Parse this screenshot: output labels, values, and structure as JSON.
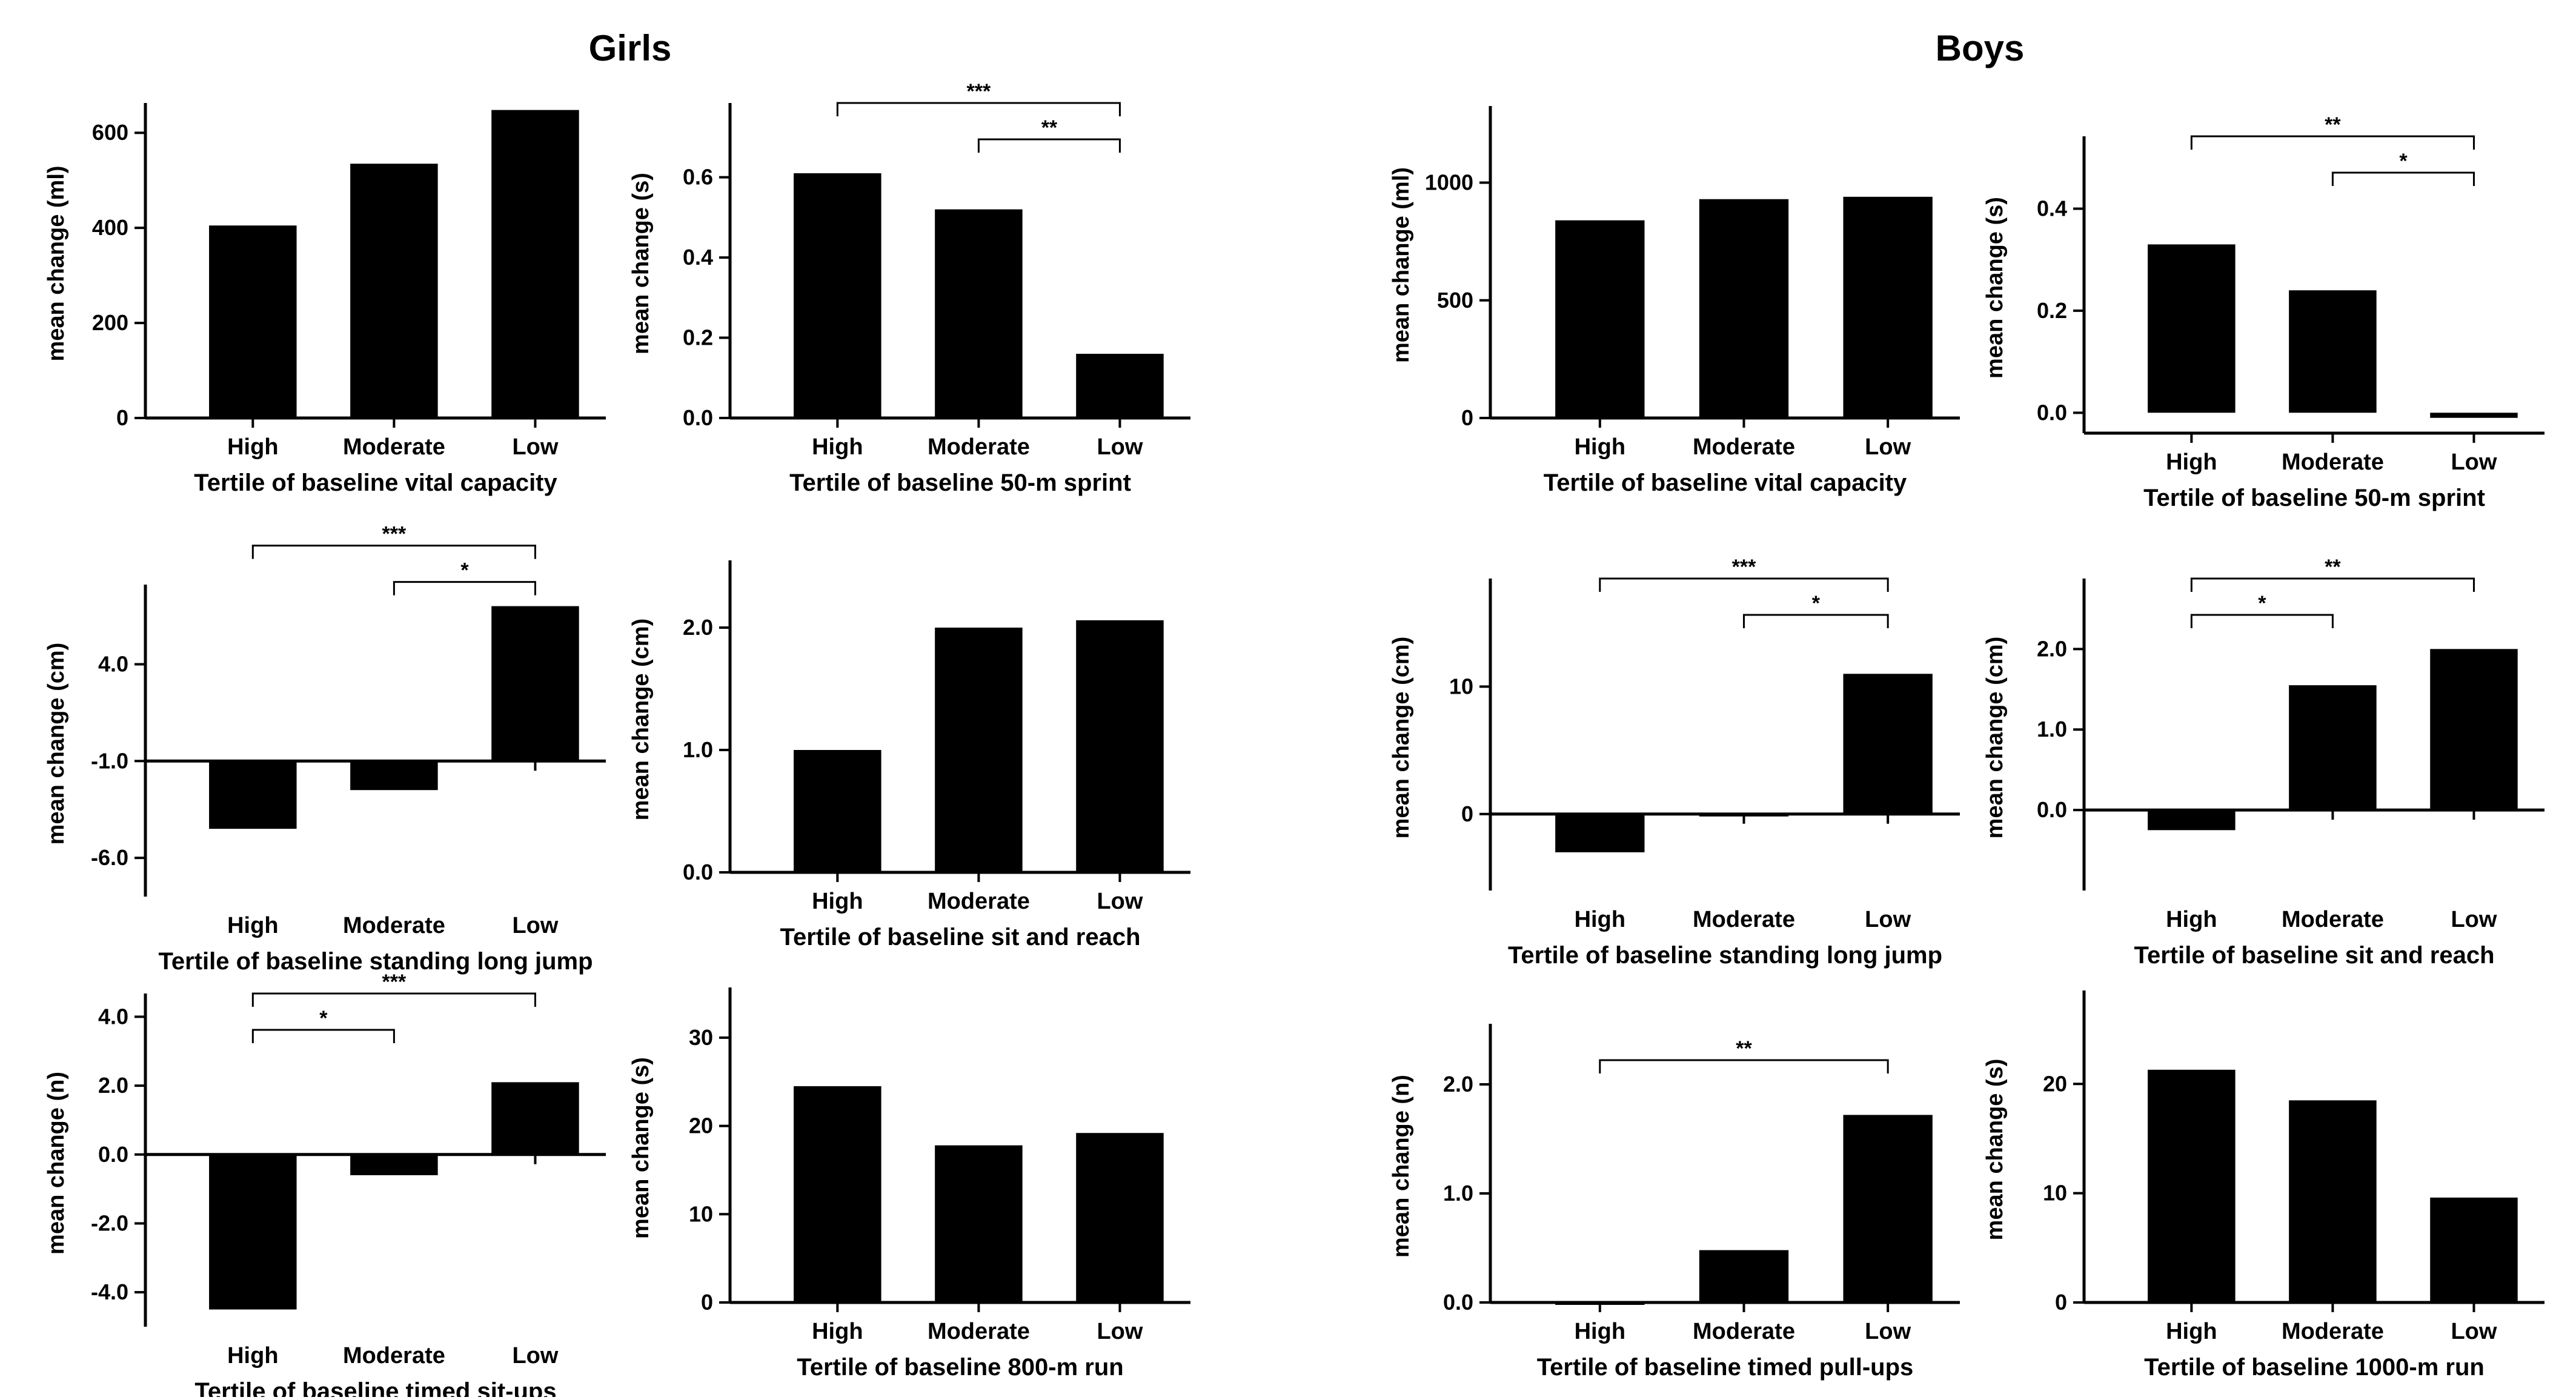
{
  "groups": [
    {
      "title": "Girls"
    },
    {
      "title": "Boys"
    }
  ],
  "chart_data": [
    {
      "type": "bar",
      "group": "Girls",
      "categories": [
        "High",
        "Moderate",
        "Low"
      ],
      "values": [
        405,
        535,
        648
      ],
      "xlabel": "Tertile of baseline vital capacity",
      "ylabel": "mean change (ml)",
      "ylim": [
        0,
        650
      ],
      "yticks": [
        0,
        200,
        400,
        600
      ],
      "ytick_labels": [
        "0",
        "200",
        "400",
        "600"
      ],
      "zero_line": false,
      "annotations": []
    },
    {
      "type": "bar",
      "group": "Girls",
      "categories": [
        "High",
        "Moderate",
        "Low"
      ],
      "values": [
        0.61,
        0.52,
        0.16
      ],
      "xlabel": "Tertile of baseline 50-m sprint",
      "ylabel": "mean change (s)",
      "ylim": [
        0,
        0.77
      ],
      "yticks": [
        0,
        0.2,
        0.4,
        0.6
      ],
      "ytick_labels": [
        "0.0",
        "0.2",
        "0.4",
        "0.6"
      ],
      "zero_line": false,
      "annotations": [
        {
          "from": 0,
          "to": 2,
          "label": "***"
        },
        {
          "from": 1,
          "to": 2,
          "label": "**"
        }
      ]
    },
    {
      "type": "bar",
      "group": "Boys",
      "categories": [
        "High",
        "Moderate",
        "Low"
      ],
      "values": [
        840,
        930,
        940
      ],
      "xlabel": "Tertile of baseline vital capacity",
      "ylabel": "mean change (ml)",
      "ylim": [
        0,
        1300
      ],
      "yticks": [
        0,
        500,
        1000
      ],
      "ytick_labels": [
        "0",
        "500",
        "1000"
      ],
      "zero_line": false,
      "annotations": []
    },
    {
      "type": "bar",
      "group": "Boys",
      "categories": [
        "High",
        "Moderate",
        "Low"
      ],
      "values": [
        0.33,
        0.24,
        -0.01
      ],
      "xlabel": "Tertile of baseline 50-m sprint",
      "ylabel": "mean change (s)",
      "ylim": [
        -0.04,
        0.53
      ],
      "yticks": [
        0,
        0.2,
        0.4
      ],
      "ytick_labels": [
        "0.0",
        "0.2",
        "0.4"
      ],
      "zero_line": false,
      "annotations": [
        {
          "from": 0,
          "to": 2,
          "label": "**"
        },
        {
          "from": 1,
          "to": 2,
          "label": "*"
        }
      ]
    },
    {
      "type": "bar",
      "group": "Girls",
      "categories": [
        "High",
        "Moderate",
        "Low"
      ],
      "values": [
        -4.5,
        -2.5,
        7.0
      ],
      "xlabel": "Tertile of baseline standing long jump",
      "ylabel": "mean change (cm)",
      "ylim": [
        -8.0,
        7.8
      ],
      "yticks": [
        -6,
        -1,
        4
      ],
      "ytick_labels": [
        "-6.0",
        "-1.0",
        "4.0"
      ],
      "zero_line": true,
      "baseline": -1.0,
      "annotations": [
        {
          "from": 0,
          "to": 2,
          "label": "***"
        },
        {
          "from": 1,
          "to": 2,
          "label": "*"
        }
      ]
    },
    {
      "type": "bar",
      "group": "Girls",
      "categories": [
        "High",
        "Moderate",
        "Low"
      ],
      "values": [
        1.0,
        2.0,
        2.06
      ],
      "xlabel": "Tertile of baseline sit and reach",
      "ylabel": "mean change (cm)",
      "ylim": [
        0,
        2.5
      ],
      "yticks": [
        0,
        1,
        2
      ],
      "ytick_labels": [
        "0.0",
        "1.0",
        "2.0"
      ],
      "zero_line": false,
      "annotations": []
    },
    {
      "type": "bar",
      "group": "Boys",
      "categories": [
        "High",
        "Moderate",
        "Low"
      ],
      "values": [
        -3.0,
        0,
        11.0
      ],
      "xlabel": "Tertile of baseline standing long jump",
      "ylabel": "mean change (cm)",
      "ylim": [
        -6,
        18
      ],
      "yticks": [
        0,
        10
      ],
      "ytick_labels": [
        "0",
        "10"
      ],
      "zero_line": true,
      "baseline": 0,
      "annotations": [
        {
          "from": 0,
          "to": 2,
          "label": "***"
        },
        {
          "from": 1,
          "to": 2,
          "label": "*"
        }
      ]
    },
    {
      "type": "bar",
      "group": "Boys",
      "categories": [
        "High",
        "Moderate",
        "Low"
      ],
      "values": [
        -0.25,
        1.55,
        2.0
      ],
      "xlabel": "Tertile of baseline sit and reach",
      "ylabel": "mean change (cm)",
      "ylim": [
        -1.0,
        2.8
      ],
      "yticks": [
        0,
        1,
        2
      ],
      "ytick_labels": [
        "0.0",
        "1.0",
        "2.0"
      ],
      "zero_line": true,
      "baseline": 0,
      "annotations": [
        {
          "from": 0,
          "to": 1,
          "label": "*"
        },
        {
          "from": 0,
          "to": 2,
          "label": "**"
        }
      ]
    },
    {
      "type": "bar",
      "group": "Girls",
      "categories": [
        "High",
        "Moderate",
        "Low"
      ],
      "values": [
        -4.5,
        -0.6,
        2.1
      ],
      "xlabel": "Tertile of baseline timed sit-ups",
      "ylabel": "mean change (n)",
      "ylim": [
        -5.0,
        4.5
      ],
      "yticks": [
        -4,
        -2,
        0,
        2,
        4
      ],
      "ytick_labels": [
        "-4.0",
        "-2.0",
        "0.0",
        "2.0",
        "4.0"
      ],
      "zero_line": true,
      "baseline": 0,
      "annotations": [
        {
          "from": 0,
          "to": 1,
          "label": "*"
        },
        {
          "from": 0,
          "to": 2,
          "label": "***"
        }
      ]
    },
    {
      "type": "bar",
      "group": "Girls",
      "categories": [
        "High",
        "Moderate",
        "Low"
      ],
      "values": [
        24.5,
        17.8,
        19.2
      ],
      "xlabel": "Tertile of baseline 800-m run",
      "ylabel": "mean change (s)",
      "ylim": [
        0,
        35
      ],
      "yticks": [
        0,
        10,
        20,
        30
      ],
      "ytick_labels": [
        "0",
        "10",
        "20",
        "30"
      ],
      "zero_line": false,
      "annotations": []
    },
    {
      "type": "bar",
      "group": "Boys",
      "categories": [
        "High",
        "Moderate",
        "Low"
      ],
      "values": [
        0,
        0.48,
        1.72
      ],
      "xlabel": "Tertile of baseline timed pull-ups",
      "ylabel": "mean change (n)",
      "ylim": [
        0,
        2.5
      ],
      "yticks": [
        0,
        1,
        2
      ],
      "ytick_labels": [
        "0.0",
        "1.0",
        "2.0"
      ],
      "zero_line": false,
      "annotations": [
        {
          "from": 0,
          "to": 2,
          "label": "**"
        }
      ]
    },
    {
      "type": "bar",
      "group": "Boys",
      "categories": [
        "High",
        "Moderate",
        "Low"
      ],
      "values": [
        21.3,
        18.5,
        9.6
      ],
      "xlabel": "Tertile of baseline 1000-m run",
      "ylabel": "mean change (s)",
      "ylim": [
        0,
        28
      ],
      "yticks": [
        0,
        10,
        20
      ],
      "ytick_labels": [
        "0",
        "10",
        "20"
      ],
      "zero_line": false,
      "annotations": []
    }
  ]
}
